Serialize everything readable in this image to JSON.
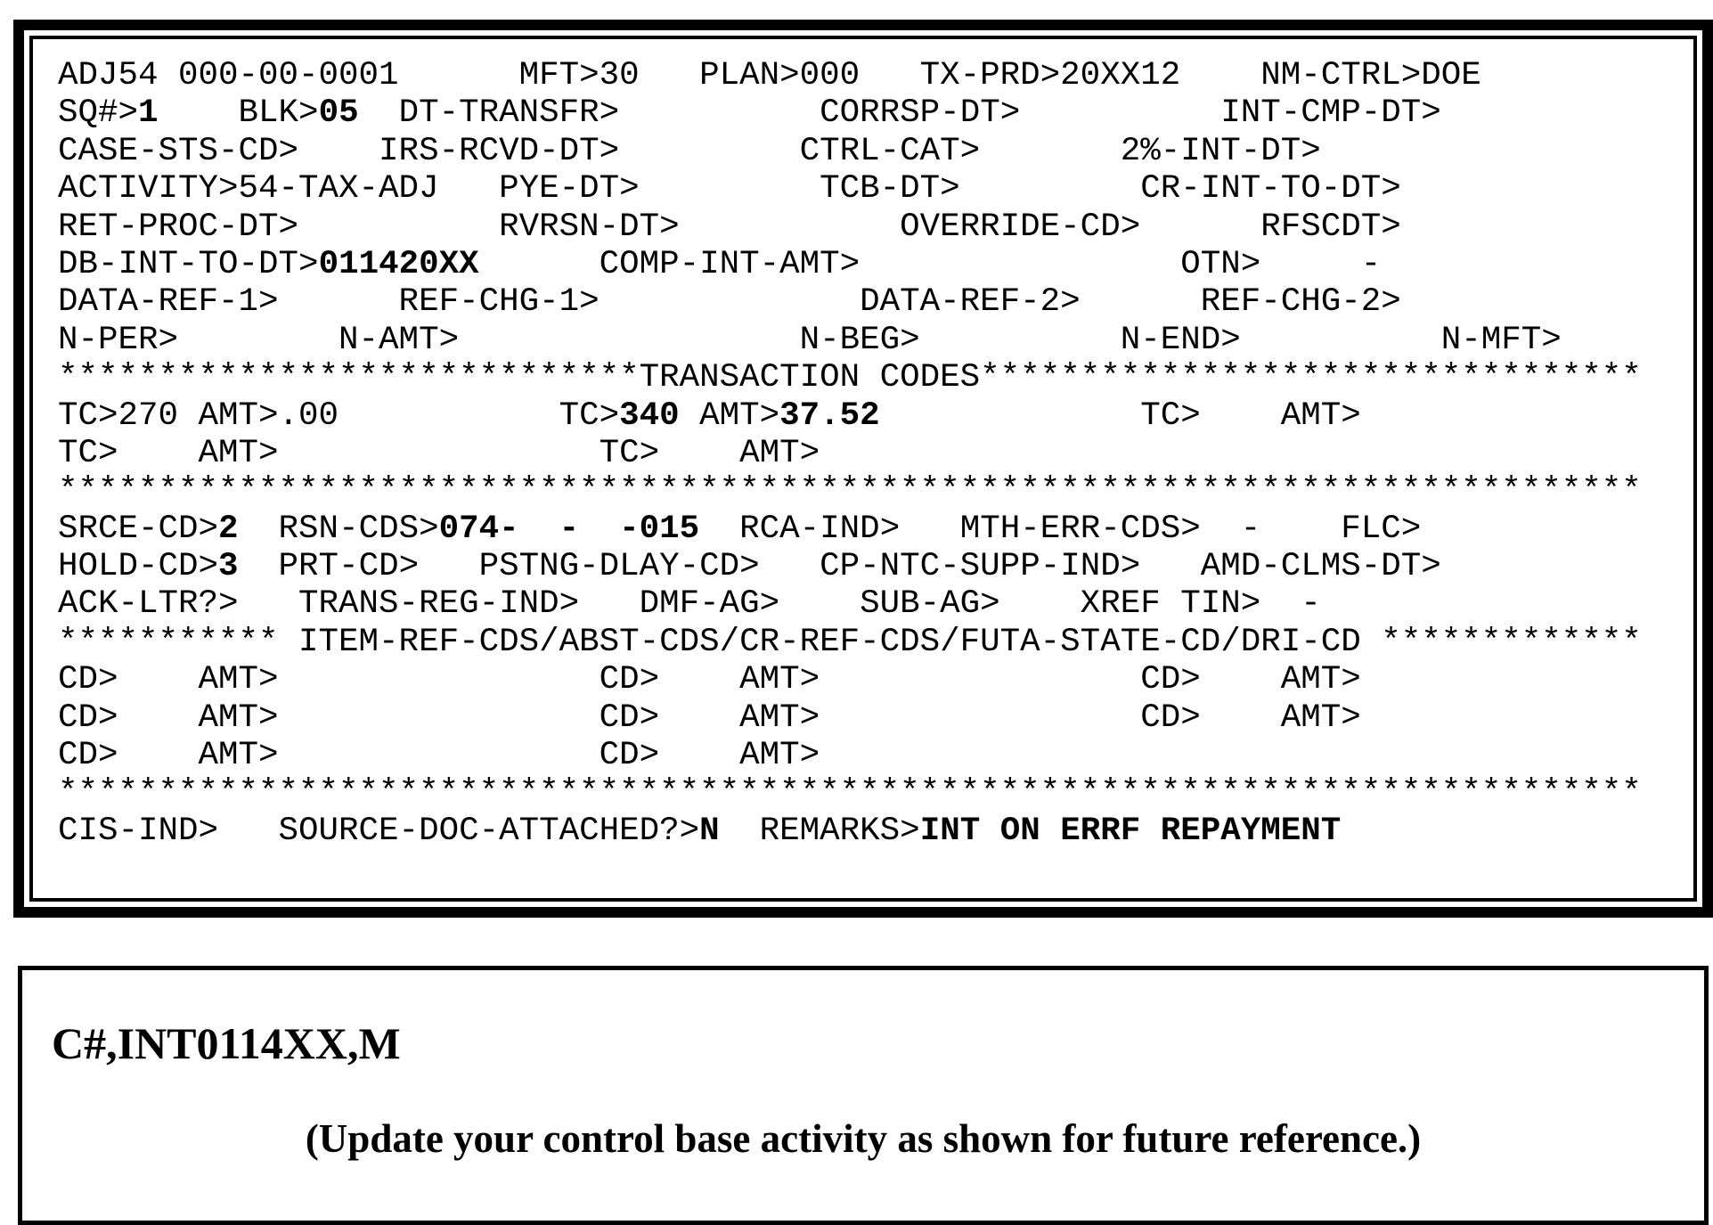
{
  "screen": {
    "lines": [
      [
        {
          "t": "ADJ54 000-00-0001      MFT>30   PLAN>000   TX-PRD>20XX12    NM-CTRL>DOE",
          "b": false
        }
      ],
      [
        {
          "t": "SQ#>",
          "b": false
        },
        {
          "t": "1",
          "b": true
        },
        {
          "t": "    BLK>",
          "b": false
        },
        {
          "t": "05",
          "b": true
        },
        {
          "t": "  DT-TRANSFR>          CORRSP-DT>          INT-CMP-DT>",
          "b": false
        }
      ],
      [
        {
          "t": "CASE-STS-CD>    IRS-RCVD-DT>         CTRL-CAT>       2%-INT-DT>",
          "b": false
        }
      ],
      [
        {
          "t": "ACTIVITY>54-TAX-ADJ   PYE-DT>         TCB-DT>         CR-INT-TO-DT>",
          "b": false
        }
      ],
      [
        {
          "t": "RET-PROC-DT>          RVRSN-DT>           OVERRIDE-CD>      RFSCDT>",
          "b": false
        }
      ],
      [
        {
          "t": "DB-INT-TO-DT>",
          "b": false
        },
        {
          "t": "011420XX",
          "b": true
        },
        {
          "t": "      COMP-INT-AMT>                OTN>     -",
          "b": false
        }
      ],
      [
        {
          "t": "DATA-REF-1>      REF-CHG-1>             DATA-REF-2>      REF-CHG-2>",
          "b": false
        }
      ],
      [
        {
          "t": "N-PER>        N-AMT>                 N-BEG>          N-END>          N-MFT>",
          "b": false
        }
      ],
      [
        {
          "t": "*****************************TRANSACTION CODES*********************************",
          "b": false
        }
      ],
      [
        {
          "t": "TC>270 AMT>.00           TC>",
          "b": false
        },
        {
          "t": "340",
          "b": true
        },
        {
          "t": " AMT>",
          "b": false
        },
        {
          "t": "37.52",
          "b": true
        },
        {
          "t": "             TC>    AMT>",
          "b": false
        }
      ],
      [
        {
          "t": "TC>    AMT>                TC>    AMT>",
          "b": false
        }
      ],
      [
        {
          "t": "*******************************************************************************",
          "b": false
        }
      ],
      [
        {
          "t": "SRCE-CD>",
          "b": false
        },
        {
          "t": "2",
          "b": true
        },
        {
          "t": "  RSN-CDS>",
          "b": false
        },
        {
          "t": "074-  -  -015",
          "b": true
        },
        {
          "t": "  RCA-IND>   MTH-ERR-CDS>  -    FLC>",
          "b": false
        }
      ],
      [
        {
          "t": "HOLD-CD>",
          "b": false
        },
        {
          "t": "3",
          "b": true
        },
        {
          "t": "  PRT-CD>   PSTNG-DLAY-CD>   CP-NTC-SUPP-IND>   AMD-CLMS-DT>",
          "b": false
        }
      ],
      [
        {
          "t": "ACK-LTR?>   TRANS-REG-IND>   DMF-AG>    SUB-AG>    XREF TIN>  -",
          "b": false
        }
      ],
      [
        {
          "t": "*********** ITEM-REF-CDS/ABST-CDS/CR-REF-CDS/FUTA-STATE-CD/DRI-CD *************",
          "b": false
        }
      ],
      [
        {
          "t": "CD>    AMT>                CD>    AMT>                CD>    AMT>",
          "b": false
        }
      ],
      [
        {
          "t": "CD>    AMT>                CD>    AMT>                CD>    AMT>",
          "b": false
        }
      ],
      [
        {
          "t": "CD>    AMT>                CD>    AMT>",
          "b": false
        }
      ],
      [
        {
          "t": "*******************************************************************************",
          "b": false
        }
      ],
      [
        {
          "t": "CIS-IND>   SOURCE-DOC-ATTACHED?>",
          "b": false
        },
        {
          "t": "N",
          "b": true
        },
        {
          "t": "  REMARKS>",
          "b": false
        },
        {
          "t": "INT ON ERRF REPAYMENT",
          "b": true
        }
      ]
    ]
  },
  "note": {
    "command": "C#,INT0114XX,M",
    "instruction": "(Update your control base activity as shown for future reference.)"
  }
}
